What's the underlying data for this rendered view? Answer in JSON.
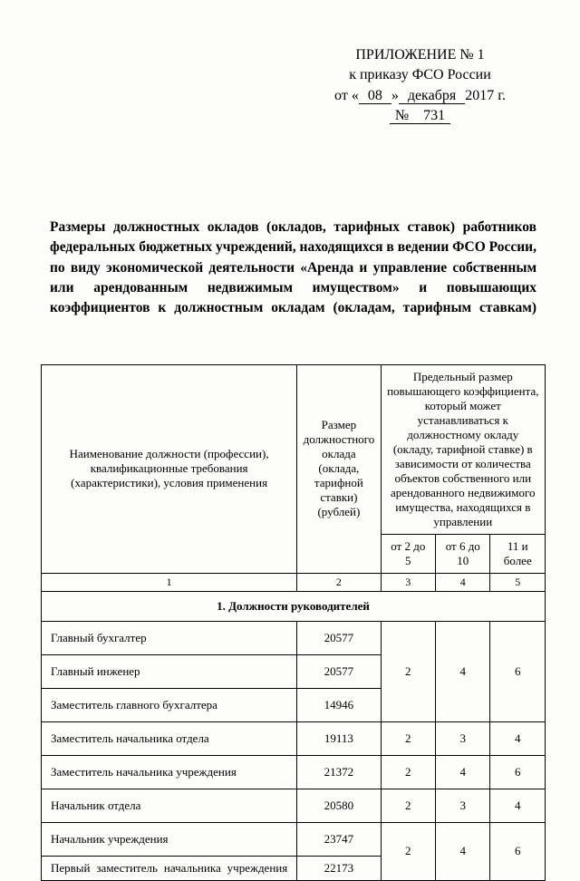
{
  "header": {
    "line1": "ПРИЛОЖЕНИЕ № 1",
    "line2_pre": "к приказу ФСО России",
    "line3_pre": "от «",
    "day": " 08 ",
    "line3_mid": "»",
    "month": " декабря ",
    "year": "2017 г.",
    "num_label": "№",
    "num": "  731  "
  },
  "title": "Размеры должностных окладов (окладов, тарифных ставок) работников федеральных бюджетных учреждений, находящихся в ведении ФСО России, по виду экономической деятельности «Аренда и управление собственным или арендованным недвижимым имуществом» и повышающих коэффициентов к должностным окладам (окладам, тарифным ставкам)",
  "table": {
    "col1_header": "Наименование должности (профессии), квалификационные требования (характеристики), условия применения",
    "col2_header": "Размер должностного оклада (оклада, тарифной ставки) (рублей)",
    "col3_header": "Предельный размер повышающего коэффициента, который может устанавливаться к должностному окладу (окладу, тарифной ставке) в зависимости от количества объектов собственного или арендованного недвижимого имущества, находящихся в управлении",
    "sub1": "от 2 до 5",
    "sub2": "от 6 до 10",
    "sub3": "11 и более",
    "n1": "1",
    "n2": "2",
    "n3": "3",
    "n4": "4",
    "n5": "5",
    "section1": "1. Должности руководителей",
    "rows": [
      {
        "name": "Главный бухгалтер",
        "salary": "20577"
      },
      {
        "name": "Главный инженер",
        "salary": "20577"
      },
      {
        "name": "Заместитель главного бухгалтера",
        "salary": "14946"
      },
      {
        "name": "Заместитель начальника отдела",
        "salary": "19113"
      },
      {
        "name": "Заместитель начальника учреждения",
        "salary": "21372"
      },
      {
        "name": "Начальник отдела",
        "salary": "20580"
      },
      {
        "name": "Начальник учреждения",
        "salary": "23747"
      },
      {
        "name": "Первый заместитель начальника учреждения",
        "salary": "22173"
      }
    ],
    "g1": {
      "c1": "2",
      "c2": "4",
      "c3": "6"
    },
    "g2": {
      "c1": "2",
      "c2": "3",
      "c3": "4"
    },
    "g3": {
      "c1": "2",
      "c2": "4",
      "c3": "6"
    },
    "g4": {
      "c1": "2",
      "c2": "3",
      "c3": "4"
    },
    "g5": {
      "c1": "2",
      "c2": "4",
      "c3": "6"
    }
  }
}
